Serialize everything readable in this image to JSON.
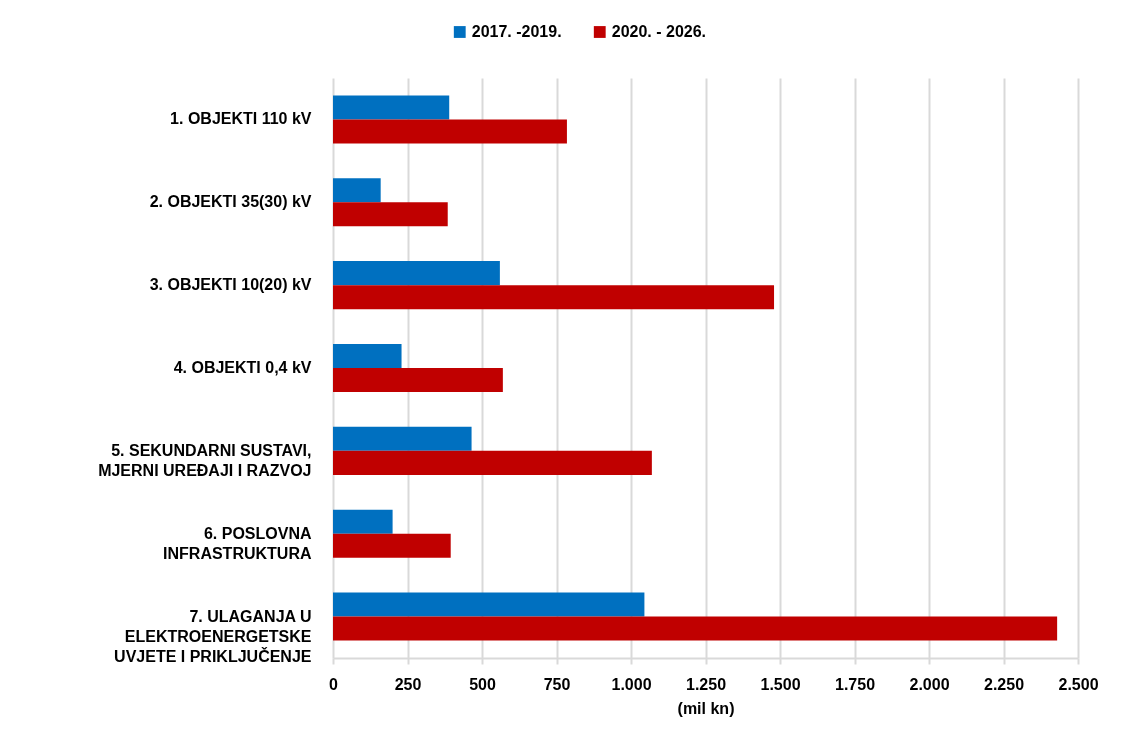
{
  "chart_data": {
    "type": "bar",
    "orientation": "horizontal",
    "categories": [
      "1. OBJEKTI 110 kV",
      "2. OBJEKTI 35(30) kV",
      "3. OBJEKTI 10(20) kV",
      "4. OBJEKTI 0,4 kV",
      "5. SEKUNDARNI SUSTAVI, MJERNI UREĐAJI I RAZVOJ",
      "6. POSLOVNA INFRASTRUKTURA",
      "7. ULAGANJA U ELEKTROENERGETSKE UVJETE I PRIKLJUČENJE"
    ],
    "series": [
      {
        "name": "2017. -2019.",
        "color": "#0070c0",
        "values": [
          390,
          160,
          560,
          230,
          465,
          200,
          1045
        ]
      },
      {
        "name": "2020. - 2026.",
        "color": "#c00000",
        "values": [
          785,
          385,
          1480,
          570,
          1070,
          395,
          2430
        ]
      }
    ],
    "xlabel": "(mil kn)",
    "xlim": [
      0,
      2500
    ],
    "xticks": [
      0,
      250,
      500,
      750,
      {
        "value": 1000,
        "label": "1.000"
      },
      {
        "value": 1250,
        "label": "1.250"
      },
      {
        "value": 1500,
        "label": "1.500"
      },
      {
        "value": 1750,
        "label": "1.750"
      },
      {
        "value": 2000,
        "label": "2.000"
      },
      {
        "value": 2250,
        "label": "2.250"
      },
      {
        "value": 2500,
        "label": "2.500"
      }
    ],
    "grid": "x",
    "legend": "top"
  }
}
